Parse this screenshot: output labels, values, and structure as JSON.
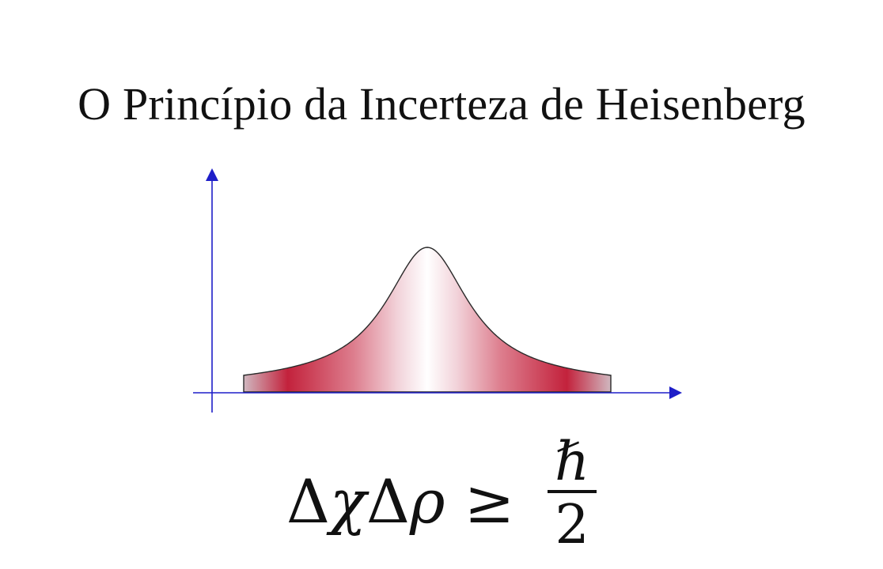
{
  "title": "O Princípio da Incerteza de Heisenberg",
  "formula": {
    "delta1": "Δ",
    "var1": "χ",
    "delta2": "Δ",
    "var2": "ρ",
    "relation": "≥",
    "numerator": "ℏ",
    "denominator": "2"
  },
  "colors": {
    "axis": "#1e1ec8",
    "curve_edge": "#c21b38",
    "curve_center": "#ffffff",
    "outline": "#2a2a2a"
  },
  "icons": {
    "y_arrow": "arrow-up-icon",
    "x_arrow": "arrow-right-icon"
  }
}
